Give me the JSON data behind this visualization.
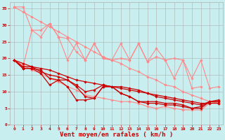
{
  "title": "",
  "xlabel": "Vent moyen/en rafales ( km/h )",
  "background_color": "#c8eef0",
  "grid_color": "#b0b0b0",
  "x": [
    0,
    1,
    2,
    3,
    4,
    5,
    6,
    7,
    8,
    9,
    10,
    11,
    12,
    13,
    14,
    15,
    16,
    17,
    18,
    19,
    20,
    21,
    22,
    23
  ],
  "series": [
    {
      "name": "light_diagonal_upper",
      "color": "#ff8888",
      "y": [
        35.5,
        34.0,
        32.5,
        31.0,
        29.5,
        28.0,
        26.5,
        25.0,
        23.5,
        22.0,
        20.5,
        19.5,
        18.5,
        17.0,
        16.0,
        14.5,
        13.5,
        12.0,
        11.5,
        10.0,
        9.0,
        8.0,
        7.0,
        6.5
      ],
      "marker": "D",
      "markersize": 1.8,
      "linewidth": 0.8
    },
    {
      "name": "light_top_jagged",
      "color": "#ff8888",
      "y": [
        35.5,
        35.5,
        28.5,
        28.5,
        30.5,
        26.5,
        19.5,
        24.5,
        19.5,
        24.5,
        20.0,
        19.5,
        24.5,
        19.5,
        24.5,
        19.0,
        20.5,
        19.5,
        14.0,
        19.5,
        11.0,
        11.5,
        null,
        null
      ],
      "marker": "D",
      "markersize": 1.8,
      "linewidth": 0.8
    },
    {
      "name": "light_mid_jagged",
      "color": "#ff8888",
      "y": [
        19.5,
        17.5,
        28.5,
        26.5,
        30.5,
        26.5,
        26.0,
        22.0,
        19.5,
        24.5,
        20.0,
        19.5,
        20.0,
        19.5,
        24.5,
        19.0,
        23.0,
        19.5,
        20.0,
        19.5,
        14.0,
        19.5,
        11.0,
        11.5
      ],
      "marker": "D",
      "markersize": 1.8,
      "linewidth": 0.8
    },
    {
      "name": "light_lower",
      "color": "#ff8888",
      "y": [
        19.5,
        18.0,
        16.5,
        15.5,
        14.0,
        13.0,
        11.5,
        10.5,
        9.0,
        8.5,
        8.0,
        7.5,
        7.0,
        7.0,
        6.5,
        5.5,
        5.0,
        5.5,
        5.0,
        4.5,
        4.5,
        4.5,
        6.5,
        6.5
      ],
      "marker": "D",
      "markersize": 1.8,
      "linewidth": 0.8
    },
    {
      "name": "dark_straight",
      "color": "#cc0000",
      "y": [
        19.5,
        18.5,
        17.5,
        17.0,
        16.5,
        15.5,
        14.5,
        13.5,
        13.0,
        12.5,
        12.0,
        11.5,
        11.0,
        10.5,
        10.0,
        9.5,
        9.0,
        8.5,
        8.0,
        7.5,
        7.0,
        6.5,
        6.5,
        6.5
      ],
      "marker": "D",
      "markersize": 1.8,
      "linewidth": 0.9
    },
    {
      "name": "dark_mid1",
      "color": "#cc0000",
      "y": [
        19.5,
        17.5,
        17.5,
        16.0,
        15.0,
        14.5,
        13.5,
        12.0,
        10.0,
        10.5,
        12.0,
        11.5,
        11.5,
        11.0,
        10.5,
        9.5,
        8.5,
        8.0,
        7.5,
        7.0,
        6.5,
        6.0,
        7.0,
        7.5
      ],
      "marker": "D",
      "markersize": 1.8,
      "linewidth": 0.9
    },
    {
      "name": "dark_mid2",
      "color": "#cc0000",
      "y": [
        19.5,
        17.0,
        17.0,
        16.5,
        14.0,
        13.5,
        13.5,
        11.5,
        8.5,
        8.0,
        11.5,
        11.5,
        9.5,
        8.5,
        7.0,
        7.0,
        7.0,
        6.5,
        6.5,
        6.0,
        5.0,
        5.5,
        7.0,
        7.0
      ],
      "marker": "D",
      "markersize": 1.8,
      "linewidth": 0.9
    },
    {
      "name": "dark_lower",
      "color": "#cc0000",
      "y": [
        19.5,
        17.0,
        17.0,
        15.5,
        12.0,
        13.5,
        11.5,
        7.5,
        7.5,
        8.0,
        11.5,
        11.5,
        9.5,
        8.5,
        7.0,
        6.5,
        6.5,
        6.0,
        6.0,
        5.5,
        5.0,
        5.0,
        7.0,
        7.0
      ],
      "marker": "D",
      "markersize": 1.8,
      "linewidth": 0.9
    }
  ],
  "ylim": [
    0,
    37
  ],
  "xlim": [
    -0.5,
    23.5
  ],
  "yticks": [
    0,
    5,
    10,
    15,
    20,
    25,
    30,
    35
  ],
  "xticks": [
    0,
    1,
    2,
    3,
    4,
    5,
    6,
    7,
    8,
    9,
    10,
    11,
    12,
    13,
    14,
    15,
    16,
    17,
    18,
    19,
    20,
    21,
    22,
    23
  ],
  "tick_color": "#cc0000",
  "label_color": "#cc0000",
  "tick_fontsize": 4.5,
  "xlabel_fontsize": 6.5
}
